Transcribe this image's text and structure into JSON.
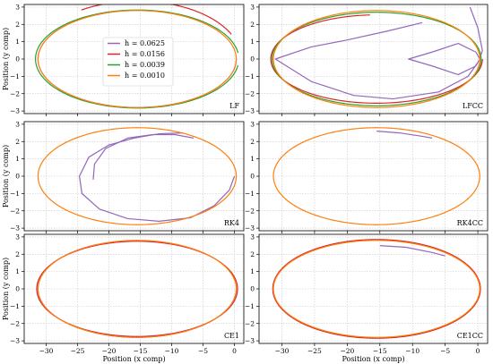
{
  "chart_data": [
    {
      "type": "line",
      "panel_label": "LF",
      "xlabel": "",
      "ylabel": "Position (y comp)",
      "xlim": [
        -33.5,
        1.5
      ],
      "ylim": [
        -3,
        3
      ],
      "grid": true,
      "legend": {
        "placement": "upper-center",
        "entries": [
          {
            "name": "h = 0.0625",
            "color": "#9467bd"
          },
          {
            "name": "h = 0.0156",
            "color": "#d62728"
          },
          {
            "name": "h = 0.0039",
            "color": "#2ca02c"
          },
          {
            "name": "h = 0.0010",
            "color": "#ff7f0e"
          }
        ]
      },
      "series": [
        {
          "name": "h = 0.0625",
          "color": "#9467bd",
          "ellipse": {
            "cx": -15.5,
            "cy": 0,
            "rx": 15.8,
            "ry": 2.8,
            "t0": 0.3,
            "t1": 1.0
          }
        },
        {
          "name": "h = 0.0156",
          "color": "#d62728",
          "ellipse": {
            "cx": -15.5,
            "cy": 0,
            "rx": 16.6,
            "ry": 3.35,
            "t0": 0.07,
            "t1": 0.34
          }
        },
        {
          "name": "h = 0.0039",
          "color": "#2ca02c",
          "ellipse": {
            "cx": -15.5,
            "cy": 0,
            "rx": 16.2,
            "ry": 2.83,
            "t0": 0.02,
            "t1": 0.98
          }
        },
        {
          "name": "h = 0.0010",
          "color": "#ff7f0e",
          "ellipse": {
            "cx": -15.5,
            "cy": 0,
            "rx": 15.8,
            "ry": 2.8,
            "t0": 0.0,
            "t1": 1.0
          }
        }
      ]
    },
    {
      "type": "line",
      "panel_label": "LFCC",
      "xlabel": "",
      "ylabel": "",
      "xlim": [
        -33.5,
        1.5
      ],
      "ylim": [
        -3,
        3
      ],
      "grid": true,
      "series": [
        {
          "name": "h = 0.0625",
          "color": "#9467bd",
          "points": [
            [
              -1.2,
              3.0
            ],
            [
              0.0,
              1.8
            ],
            [
              0.7,
              0.5
            ],
            [
              0.3,
              0.0
            ],
            [
              -0.3,
              0.4
            ],
            [
              -3.0,
              0.9
            ],
            [
              -7.0,
              0.4
            ],
            [
              -10.6,
              0.0
            ],
            [
              -7.0,
              -0.4
            ],
            [
              -3.0,
              -0.9
            ],
            [
              -0.3,
              -0.4
            ],
            [
              0.3,
              0.0
            ]
          ]
        },
        {
          "name": "h = 0.0625",
          "color": "#9467bd",
          "points": [
            [
              -8.5,
              2.1
            ],
            [
              -14.0,
              1.6
            ],
            [
              -20.0,
              1.1
            ],
            [
              -25.5,
              0.7
            ],
            [
              -31.0,
              0.0
            ],
            [
              -25.5,
              -1.3
            ],
            [
              -19.0,
              -2.1
            ],
            [
              -13.0,
              -2.3
            ],
            [
              -6.0,
              -1.9
            ],
            [
              -1.5,
              -1.0
            ],
            [
              0.0,
              -0.2
            ]
          ]
        },
        {
          "name": "h = 0.0156",
          "color": "#d62728",
          "ellipse": {
            "cx": -15.5,
            "cy": 0,
            "rx": 16.2,
            "ry": 2.55,
            "t0": 0.26,
            "t1": 1.0
          }
        },
        {
          "name": "h = 0.0039",
          "color": "#2ca02c",
          "ellipse": {
            "cx": -15.5,
            "cy": 0,
            "rx": 16.0,
            "ry": 2.7,
            "t0": 0.0,
            "t1": 1.0
          }
        },
        {
          "name": "h = 0.0010",
          "color": "#ff7f0e",
          "ellipse": {
            "cx": -15.5,
            "cy": 0,
            "rx": 15.8,
            "ry": 2.8,
            "t0": 0.0,
            "t1": 1.0
          }
        }
      ]
    },
    {
      "type": "line",
      "panel_label": "RK4",
      "xlabel": "",
      "ylabel": "Position (y comp)",
      "xlim": [
        -33.5,
        1.5
      ],
      "ylim": [
        -3,
        3
      ],
      "grid": true,
      "series": [
        {
          "name": "h = 0.0625",
          "color": "#9467bd",
          "points": [
            [
              -22.5,
              -0.2
            ],
            [
              -22.3,
              0.7
            ],
            [
              -20.5,
              1.6
            ],
            [
              -17.0,
              2.2
            ],
            [
              -13.0,
              2.4
            ],
            [
              -9.5,
              2.4
            ],
            [
              -6.5,
              2.2
            ]
          ]
        },
        {
          "name": "h = 0.0625",
          "color": "#9467bd",
          "points": [
            [
              -8.2,
              2.5
            ],
            [
              -12.0,
              2.45
            ],
            [
              -16.0,
              2.2
            ],
            [
              -20.0,
              1.8
            ],
            [
              -23.2,
              1.1
            ],
            [
              -24.7,
              0.0
            ],
            [
              -24.3,
              -1.0
            ],
            [
              -21.5,
              -1.9
            ],
            [
              -17.0,
              -2.45
            ],
            [
              -12.0,
              -2.6
            ],
            [
              -7.0,
              -2.4
            ],
            [
              -3.2,
              -1.7
            ],
            [
              -0.8,
              -0.8
            ],
            [
              0.0,
              0.0
            ]
          ]
        },
        {
          "name": "h = 0.0010",
          "color": "#ff7f0e",
          "ellipse": {
            "cx": -15.5,
            "cy": 0,
            "rx": 15.8,
            "ry": 2.8,
            "t0": 0.0,
            "t1": 1.0
          }
        }
      ]
    },
    {
      "type": "line",
      "panel_label": "RK4CC",
      "xlabel": "",
      "ylabel": "",
      "xlim": [
        -33.5,
        1.5
      ],
      "ylim": [
        -3,
        3
      ],
      "grid": true,
      "series": [
        {
          "name": "h = 0.0625",
          "color": "#9467bd",
          "points": [
            [
              -15.5,
              2.6
            ],
            [
              -12.0,
              2.5
            ],
            [
              -8.5,
              2.3
            ],
            [
              -7.0,
              2.2
            ]
          ]
        },
        {
          "name": "h = 0.0010",
          "color": "#ff7f0e",
          "ellipse": {
            "cx": -15.5,
            "cy": 0,
            "rx": 15.8,
            "ry": 2.8,
            "t0": 0.0,
            "t1": 1.0
          }
        }
      ]
    },
    {
      "type": "line",
      "panel_label": "CE1",
      "xlabel": "Position (x comp)",
      "ylabel": "Position (y comp)",
      "xlim": [
        -33.5,
        1.5
      ],
      "ylim": [
        -3,
        3
      ],
      "grid": true,
      "series": [
        {
          "name": "h = 0.0625",
          "color": "#9467bd",
          "ellipse": {
            "cx": -15.5,
            "cy": 0,
            "rx": 15.8,
            "ry": 2.8,
            "t0": 0.32,
            "t1": 1.0
          }
        },
        {
          "name": "h = 0.0156",
          "color": "#d62728",
          "ellipse": {
            "cx": -15.5,
            "cy": 0,
            "rx": 16.0,
            "ry": 2.75,
            "t0": 0.0,
            "t1": 1.0
          }
        },
        {
          "name": "h = 0.0010",
          "color": "#ff7f0e",
          "ellipse": {
            "cx": -15.5,
            "cy": 0,
            "rx": 15.8,
            "ry": 2.8,
            "t0": 0.0,
            "t1": 1.0
          }
        }
      ]
    },
    {
      "type": "line",
      "panel_label": "CE1CC",
      "xlabel": "Position (x comp)",
      "ylabel": "",
      "xlim": [
        -33.5,
        1.5
      ],
      "ylim": [
        -3,
        3
      ],
      "grid": true,
      "series": [
        {
          "name": "h = 0.0625",
          "color": "#9467bd",
          "points": [
            [
              -15.0,
              2.5
            ],
            [
              -11.0,
              2.4
            ],
            [
              -7.0,
              2.1
            ],
            [
              -5.0,
              1.9
            ]
          ]
        },
        {
          "name": "h = 0.0156",
          "color": "#d62728",
          "ellipse": {
            "cx": -15.5,
            "cy": 0,
            "rx": 15.9,
            "ry": 2.85,
            "t0": 0.0,
            "t1": 1.0
          }
        },
        {
          "name": "h = 0.0010",
          "color": "#ff7f0e",
          "ellipse": {
            "cx": -15.5,
            "cy": 0,
            "rx": 15.8,
            "ry": 2.8,
            "t0": 0.0,
            "t1": 1.0
          }
        }
      ]
    }
  ],
  "axes": {
    "x_ticks": [
      -30,
      -25,
      -20,
      -15,
      -10,
      -5,
      0
    ],
    "y_ticks": [
      -3,
      -2,
      -1,
      0,
      1,
      2,
      3
    ]
  }
}
